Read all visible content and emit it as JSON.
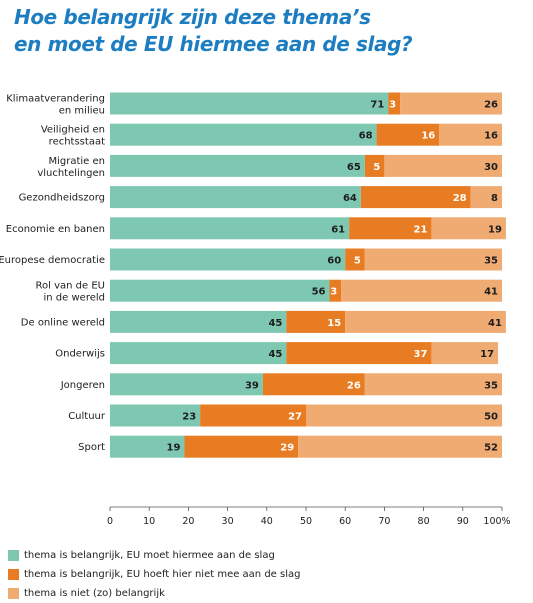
{
  "title_line1": "Hoe belangrijk zijn deze thema’s",
  "title_line2": "en moet de EU hiermee aan de slag?",
  "chart_data": {
    "type": "bar",
    "orientation": "horizontal",
    "stacked": true,
    "categories": [
      [
        "Klimaatverandering",
        "en milieu"
      ],
      [
        "Veiligheid en",
        "rechtsstaat"
      ],
      [
        "Migratie en",
        "vluchtelingen"
      ],
      [
        "Gezondheidszorg"
      ],
      [
        "Economie en banen"
      ],
      [
        "Europese democratie"
      ],
      [
        "Rol van de EU",
        "in de wereld"
      ],
      [
        "De online wereld"
      ],
      [
        "Onderwijs"
      ],
      [
        "Jongeren"
      ],
      [
        "Cultuur"
      ],
      [
        "Sport"
      ]
    ],
    "series": [
      {
        "name": "thema is belangrijk, EU moet hiermee aan de slag",
        "color": "#7ec8b2",
        "label_color": "#1e1e1e",
        "values": [
          71,
          68,
          65,
          64,
          61,
          60,
          56,
          45,
          45,
          39,
          23,
          19
        ]
      },
      {
        "name": "thema is belangrijk, EU hoeft hier niet mee aan de slag",
        "color": "#e87c22",
        "label_color": "#ffffff",
        "values": [
          3,
          16,
          5,
          28,
          21,
          5,
          3,
          15,
          37,
          26,
          27,
          29
        ]
      },
      {
        "name": "thema is niet (zo) belangrijk",
        "color": "#f0ab72",
        "label_color": "#1e1e1e",
        "values": [
          26,
          16,
          30,
          8,
          19,
          35,
          41,
          41,
          17,
          35,
          50,
          52
        ]
      }
    ],
    "x_ticks": [
      "0",
      "10",
      "20",
      "30",
      "40",
      "50",
      "60",
      "70",
      "80",
      "90",
      "100%"
    ],
    "xlim": [
      0,
      100
    ],
    "grid": false,
    "legend_position": "bottom-left"
  }
}
